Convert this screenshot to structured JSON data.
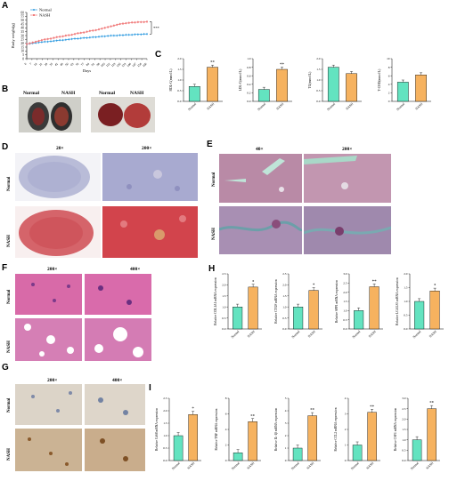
{
  "panels": [
    "A",
    "B",
    "C",
    "D",
    "E",
    "F",
    "G",
    "H",
    "I"
  ],
  "groups": {
    "normal": "Normal",
    "nash": "NASH"
  },
  "colors": {
    "normal": "#2f9be0",
    "nash": "#f07a7a",
    "bar_normal": "#63e3c0",
    "bar_nash": "#f6b25f"
  },
  "panelB": {
    "labels": [
      "Normal",
      "NASH",
      "Normal",
      "NASH"
    ]
  },
  "panelD": {
    "mags": [
      "20×",
      "200×"
    ],
    "rows": [
      "Normal",
      "NASH"
    ]
  },
  "panelE": {
    "mags": [
      "40×",
      "200×"
    ],
    "rows": [
      "Normal",
      "NASH"
    ]
  },
  "panelF": {
    "mags": [
      "200×",
      "400×"
    ],
    "rows": [
      "Normal",
      "NASH"
    ]
  },
  "panelG": {
    "mags": [
      "200×",
      "400×"
    ],
    "rows": [
      "Normal",
      "NASH"
    ]
  },
  "chart_data": [
    {
      "panel": "A",
      "type": "line",
      "ylabel": "Body weight(g)",
      "xlabel": "Days",
      "ylim": [
        0,
        60
      ],
      "yticks": [
        "0",
        "5",
        "10",
        "15",
        "20",
        "25",
        "30",
        "35",
        "40",
        "45",
        "50",
        "55",
        "60"
      ],
      "x": [
        0,
        4,
        8,
        12,
        16,
        20,
        24,
        28,
        32,
        36,
        40,
        44,
        48,
        52,
        56,
        60,
        64,
        68,
        72,
        76,
        80,
        84,
        88,
        92,
        96,
        100,
        104,
        108,
        112,
        116,
        120,
        124,
        128,
        132,
        136,
        140,
        144,
        148,
        152,
        156,
        160
      ],
      "xticks": [
        "0",
        "7",
        "14",
        "21",
        "28",
        "35",
        "42",
        "49",
        "56",
        "63",
        "70",
        "77",
        "84",
        "91",
        "98",
        "105",
        "112",
        "119",
        "126",
        "133",
        "140",
        "147",
        "154",
        "160"
      ],
      "series": [
        {
          "name": "Normal",
          "values": [
            19,
            19.5,
            20,
            20.5,
            21,
            21.5,
            22,
            22,
            22.5,
            23,
            23.5,
            24,
            24,
            24.5,
            25,
            25.5,
            26,
            26,
            26.5,
            27,
            27,
            27.5,
            28,
            28,
            28.5,
            29,
            29,
            29.5,
            30,
            30,
            30,
            30.5,
            30.5,
            31,
            31,
            31,
            31.5,
            31.5,
            31.5,
            32,
            32
          ]
        },
        {
          "name": "NASH",
          "values": [
            19,
            20,
            21,
            22,
            23,
            24,
            25,
            25.5,
            26,
            27,
            28,
            28.5,
            29,
            30,
            30.5,
            31,
            32,
            33,
            33.5,
            34,
            35,
            36,
            36.5,
            37,
            38,
            39,
            40,
            41,
            42,
            43,
            44,
            45,
            45.5,
            46,
            46.5,
            47,
            47,
            47.5,
            47.5,
            47.5,
            48
          ]
        }
      ],
      "annotation": "***"
    },
    {
      "panel": "C",
      "type": "bar",
      "charts": [
        {
          "ylabel": "HDL-C(mmol/L)",
          "yticks": [
            "0.0",
            "0.5",
            "1.0",
            "1.5",
            "2.0"
          ],
          "ylim": [
            0,
            2
          ],
          "categories": [
            "Normal",
            "NASH"
          ],
          "values": [
            0.7,
            1.6
          ],
          "sig": "**"
        },
        {
          "ylabel": "LDL-C(mmol/L)",
          "yticks": [
            "0.0",
            "0.2",
            "0.4",
            "0.6",
            "0.8",
            "1.0"
          ],
          "ylim": [
            0,
            1
          ],
          "categories": [
            "Normal",
            "NASH"
          ],
          "values": [
            0.28,
            0.75
          ],
          "sig": "**"
        },
        {
          "ylabel": "TG(mmol/L)",
          "yticks": [
            "0.0",
            "0.5",
            "1.0",
            "1.5",
            "2.0"
          ],
          "ylim": [
            0,
            2
          ],
          "categories": [
            "Normal",
            "NASH"
          ],
          "values": [
            1.6,
            1.3
          ],
          "sig": ""
        },
        {
          "ylabel": "T-CHO(mmol/L)",
          "yticks": [
            "0",
            "2",
            "4",
            "6",
            "8",
            "10"
          ],
          "ylim": [
            0,
            10
          ],
          "categories": [
            "Normal",
            "NASH"
          ],
          "values": [
            4.5,
            6.2
          ],
          "sig": ""
        }
      ]
    },
    {
      "panel": "H",
      "type": "bar",
      "charts": [
        {
          "ylabel": "Relative COL1A1 mRNA expression",
          "yticks": [
            "0.0",
            "0.5",
            "1.0",
            "1.5",
            "2.0",
            "2.5"
          ],
          "ylim": [
            0,
            2.5
          ],
          "categories": [
            "Normal",
            "NASH"
          ],
          "values": [
            1.0,
            1.9
          ],
          "sig": "*"
        },
        {
          "ylabel": "Relative CTGF mRNA expression",
          "yticks": [
            "0.0",
            "0.5",
            "1.0",
            "1.5",
            "2.0",
            "2.5"
          ],
          "ylim": [
            0,
            2.5
          ],
          "categories": [
            "Normal",
            "NASH"
          ],
          "values": [
            1.0,
            1.75
          ],
          "sig": "*"
        },
        {
          "ylabel": "Relative SPP1 mRNA expression",
          "yticks": [
            "0.0",
            "0.5",
            "1.0",
            "1.5",
            "2.0",
            "2.5",
            "3.0"
          ],
          "ylim": [
            0,
            3
          ],
          "categories": [
            "Normal",
            "NASH"
          ],
          "values": [
            1.0,
            2.3
          ],
          "sig": "**"
        },
        {
          "ylabel": "Relative LGALS3 mRNA expression",
          "yticks": [
            "0.0",
            "0.5",
            "1.0",
            "1.5",
            "2.0"
          ],
          "ylim": [
            0,
            2
          ],
          "categories": [
            "Normal",
            "NASH"
          ],
          "values": [
            1.0,
            1.38
          ],
          "sig": "*"
        }
      ]
    },
    {
      "panel": "I",
      "type": "bar",
      "charts": [
        {
          "ylabel": "Relative Cd68 mRNA expression",
          "yticks": [
            "0.0",
            "0.5",
            "1.0",
            "1.5",
            "2.0",
            "2.5"
          ],
          "ylim": [
            0,
            2.5
          ],
          "categories": [
            "Normal",
            "NASH"
          ],
          "values": [
            1.0,
            1.85
          ],
          "sig": "*"
        },
        {
          "ylabel": "Relative TNF mRNA expression",
          "yticks": [
            "0",
            "2",
            "4",
            "6",
            "8"
          ],
          "ylim": [
            0,
            8
          ],
          "categories": [
            "Normal",
            "NASH"
          ],
          "values": [
            1.0,
            5.0
          ],
          "sig": "**"
        },
        {
          "ylabel": "Relative IL-1β mRNA expression",
          "yticks": [
            "0",
            "1",
            "2",
            "3",
            "4",
            "5"
          ],
          "ylim": [
            0,
            5
          ],
          "categories": [
            "Normal",
            "NASH"
          ],
          "values": [
            1.0,
            3.6
          ],
          "sig": "**"
        },
        {
          "ylabel": "Relative CCL2 mRNA expression",
          "yticks": [
            "0",
            "1",
            "2",
            "3",
            "4"
          ],
          "ylim": [
            0,
            4
          ],
          "categories": [
            "Normal",
            "NASH"
          ],
          "values": [
            1.0,
            3.1
          ],
          "sig": "**"
        },
        {
          "ylabel": "Relative CSF1 mRNA expression",
          "yticks": [
            "0.0",
            "0.5",
            "1.0",
            "1.5",
            "2.0",
            "2.5",
            "3.0"
          ],
          "ylim": [
            0,
            3
          ],
          "categories": [
            "Normal",
            "NASH"
          ],
          "values": [
            1.0,
            2.5
          ],
          "sig": "**"
        }
      ]
    }
  ]
}
